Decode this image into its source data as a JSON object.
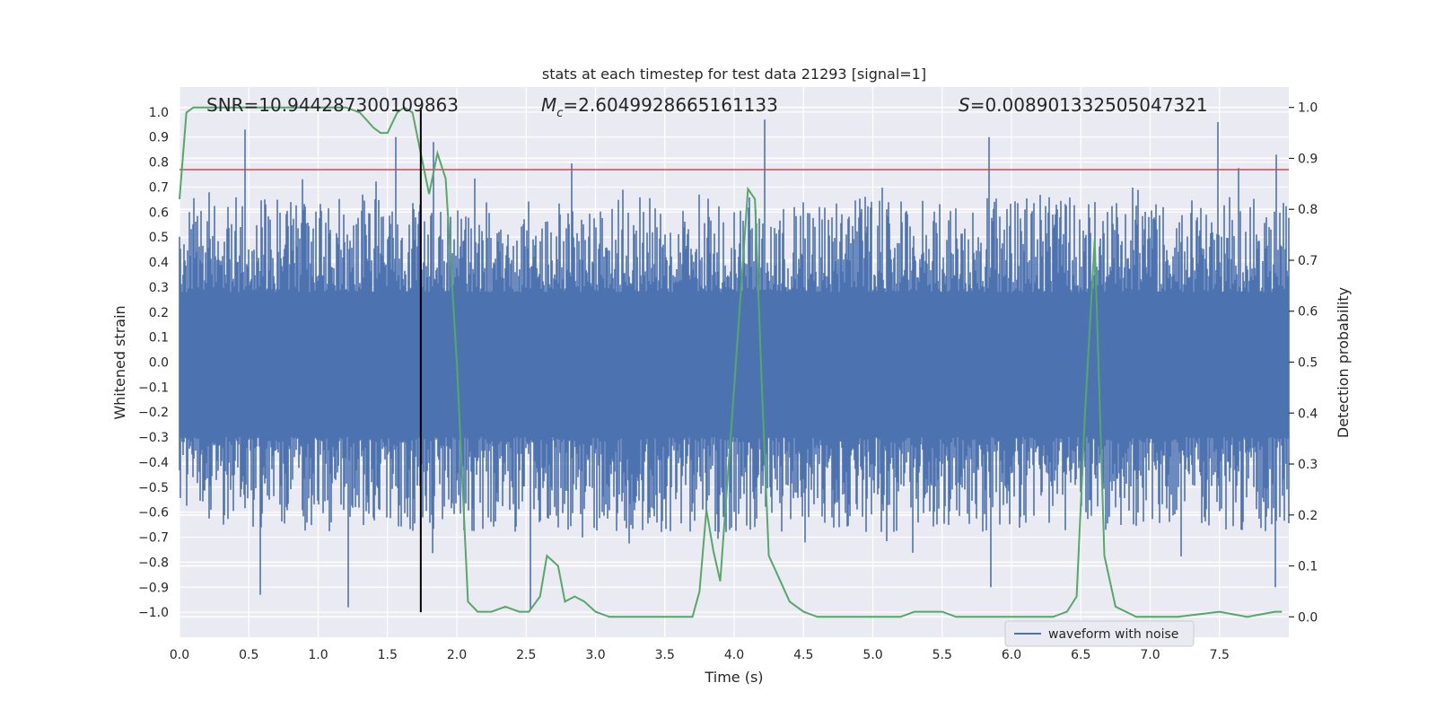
{
  "chart_data": {
    "type": "line",
    "title": "stats at each timestep for test data 21293 [signal=1]",
    "xlabel": "Time (s)",
    "ylabel": "Whitened strain",
    "y2label": "Detection probability",
    "xlim": [
      0.0,
      8.0
    ],
    "ylim": [
      -1.1,
      1.1
    ],
    "y2lim": [
      -0.04,
      1.04
    ],
    "x_ticks": [
      "0.0",
      "0.5",
      "1.0",
      "1.5",
      "2.0",
      "2.5",
      "3.0",
      "3.5",
      "4.0",
      "4.5",
      "5.0",
      "5.5",
      "6.0",
      "6.5",
      "7.0",
      "7.5"
    ],
    "y_ticks": [
      "1.0",
      "0.9",
      "0.8",
      "0.7",
      "0.6",
      "0.5",
      "0.4",
      "0.3",
      "0.2",
      "0.1",
      "0.0",
      "-0.1",
      "-0.2",
      "-0.3",
      "-0.4",
      "-0.5",
      "-0.6",
      "-0.7",
      "-0.8",
      "-0.9",
      "-1.0"
    ],
    "y2_ticks": [
      "1.0",
      "0.9",
      "0.8",
      "0.7",
      "0.6",
      "0.5",
      "0.4",
      "0.3",
      "0.2",
      "0.1",
      "0.0"
    ],
    "grid": true,
    "legend_position": "lower-right",
    "annotations": {
      "snr": "SNR=10.944287300109863",
      "mc_symbol": "M",
      "mc_sub": "c",
      "mc_value": "=2.6049928665161133",
      "s_symbol": "S",
      "s_value": "=0.008901332505047321"
    },
    "threshold_y": 0.77,
    "marker_time": 1.74,
    "series": [
      {
        "name": "waveform with noise",
        "axis": "left",
        "color": "#4c72b0",
        "style": "noise",
        "x_range": [
          0.0,
          8.0
        ],
        "envelope": [
          0.5,
          -0.55
        ],
        "notable_peaks": [
          {
            "x": 0.47,
            "y": 0.93
          },
          {
            "x": 1.56,
            "y": 0.9
          },
          {
            "x": 1.83,
            "y": 0.88
          },
          {
            "x": 4.22,
            "y": 0.97
          },
          {
            "x": 5.84,
            "y": 0.9
          },
          {
            "x": 7.49,
            "y": 0.96
          },
          {
            "x": 7.91,
            "y": 0.83
          }
        ],
        "notable_troughs": [
          {
            "x": 0.58,
            "y": -0.93
          },
          {
            "x": 1.22,
            "y": -0.98
          },
          {
            "x": 2.53,
            "y": -0.99
          },
          {
            "x": 5.85,
            "y": -0.9
          },
          {
            "x": 7.9,
            "y": -0.9
          }
        ]
      },
      {
        "name": "",
        "axis": "right",
        "color": "#55a868",
        "x": [
          0.0,
          0.05,
          0.1,
          0.3,
          0.6,
          0.9,
          1.0,
          1.2,
          1.3,
          1.4,
          1.45,
          1.5,
          1.57,
          1.62,
          1.68,
          1.74,
          1.8,
          1.86,
          1.92,
          2.0,
          2.08,
          2.15,
          2.25,
          2.35,
          2.45,
          2.52,
          2.6,
          2.65,
          2.73,
          2.78,
          2.85,
          2.92,
          3.0,
          3.1,
          3.3,
          3.5,
          3.6,
          3.7,
          3.75,
          3.8,
          3.85,
          3.9,
          4.0,
          4.1,
          4.15,
          4.2,
          4.25,
          4.3,
          4.4,
          4.5,
          4.6,
          4.8,
          5.0,
          5.2,
          5.3,
          5.4,
          5.5,
          5.6,
          5.8,
          6.0,
          6.2,
          6.3,
          6.4,
          6.47,
          6.53,
          6.6,
          6.67,
          6.75,
          6.9,
          7.0,
          7.2,
          7.5,
          7.7,
          7.9,
          7.95
        ],
        "y": [
          0.82,
          0.99,
          1.0,
          1.0,
          1.0,
          1.0,
          1.0,
          1.0,
          0.99,
          0.96,
          0.95,
          0.95,
          0.99,
          1.0,
          0.99,
          0.91,
          0.83,
          0.91,
          0.86,
          0.5,
          0.03,
          0.01,
          0.01,
          0.02,
          0.01,
          0.01,
          0.04,
          0.12,
          0.1,
          0.03,
          0.04,
          0.03,
          0.01,
          0.0,
          0.0,
          0.0,
          0.0,
          0.0,
          0.05,
          0.21,
          0.13,
          0.07,
          0.45,
          0.84,
          0.82,
          0.45,
          0.12,
          0.09,
          0.03,
          0.01,
          0.0,
          0.0,
          0.0,
          0.0,
          0.01,
          0.01,
          0.01,
          0.0,
          0.0,
          0.0,
          0.0,
          0.0,
          0.01,
          0.04,
          0.4,
          0.74,
          0.12,
          0.02,
          0.0,
          0.0,
          0.0,
          0.01,
          0.0,
          0.01,
          0.01
        ]
      }
    ]
  }
}
